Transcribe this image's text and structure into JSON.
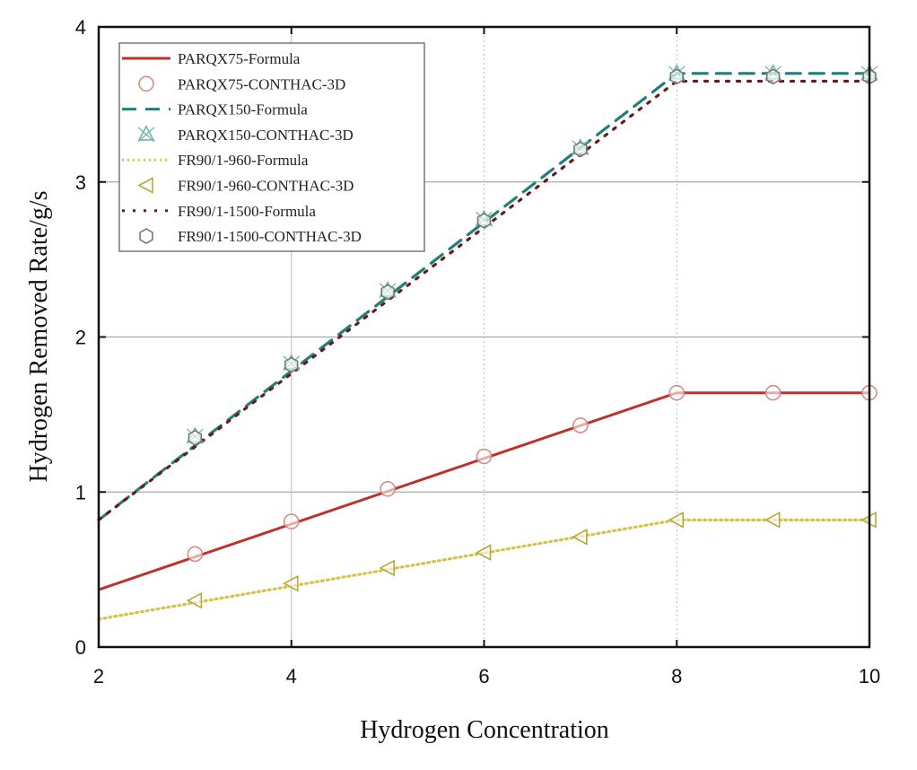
{
  "chart_data": {
    "type": "line",
    "title": "",
    "xlabel": "Hydrogen Concentration",
    "ylabel": "Hydrogen Removed Rate/g/s",
    "xlim": [
      2,
      10
    ],
    "ylim": [
      0,
      4
    ],
    "xticks": [
      2,
      4,
      6,
      8,
      10
    ],
    "yticks": [
      0,
      1,
      2,
      3,
      4
    ],
    "grid": true,
    "legend_position": "top-left",
    "series": [
      {
        "name": "PARQX75-Formula",
        "kind": "line",
        "style": "solid",
        "color": "#c0302a",
        "x": [
          2,
          8,
          9,
          10
        ],
        "y": [
          0.37,
          1.64,
          1.64,
          1.64
        ]
      },
      {
        "name": "PARQX75-CONTHAC-3D",
        "kind": "marker",
        "marker": "circle",
        "color": "#d88a8a",
        "x": [
          3,
          4,
          5,
          6,
          7,
          8,
          9,
          10
        ],
        "y": [
          0.6,
          0.81,
          1.02,
          1.23,
          1.43,
          1.64,
          1.64,
          1.64
        ]
      },
      {
        "name": "PARQX150-Formula",
        "kind": "line",
        "style": "dash",
        "color": "#1f7f7a",
        "x": [
          2,
          8,
          9,
          10
        ],
        "y": [
          0.82,
          3.7,
          3.7,
          3.7
        ]
      },
      {
        "name": "PARQX150-CONTHAC-3D",
        "kind": "marker",
        "marker": "star-triangle",
        "color": "#6fb9a8",
        "x": [
          3,
          4,
          5,
          6,
          7,
          8,
          9,
          10
        ],
        "y": [
          1.36,
          1.83,
          2.3,
          2.76,
          3.22,
          3.7,
          3.7,
          3.7
        ]
      },
      {
        "name": "FR90/1-960-Formula",
        "kind": "line",
        "style": "dot",
        "color": "#d9c24a",
        "x": [
          2,
          8,
          9,
          10
        ],
        "y": [
          0.18,
          0.82,
          0.82,
          0.82
        ]
      },
      {
        "name": "FR90/1-960-CONTHAC-3D",
        "kind": "marker",
        "marker": "triangle-left",
        "color": "#b8a640",
        "x": [
          3,
          4,
          5,
          6,
          7,
          8,
          9,
          10
        ],
        "y": [
          0.3,
          0.41,
          0.51,
          0.61,
          0.71,
          0.82,
          0.82,
          0.82
        ]
      },
      {
        "name": "FR90/1-1500-Formula",
        "kind": "line",
        "style": "sparse-dot",
        "color": "#6a1a1a",
        "x": [
          2,
          8,
          9,
          10
        ],
        "y": [
          0.82,
          3.65,
          3.65,
          3.65
        ]
      },
      {
        "name": "FR90/1-1500-CONTHAC-3D",
        "kind": "marker",
        "marker": "hexagon",
        "color": "#777777",
        "x": [
          3,
          4,
          5,
          6,
          7,
          8,
          9,
          10
        ],
        "y": [
          1.35,
          1.82,
          2.29,
          2.75,
          3.21,
          3.68,
          3.68,
          3.68
        ]
      }
    ]
  }
}
